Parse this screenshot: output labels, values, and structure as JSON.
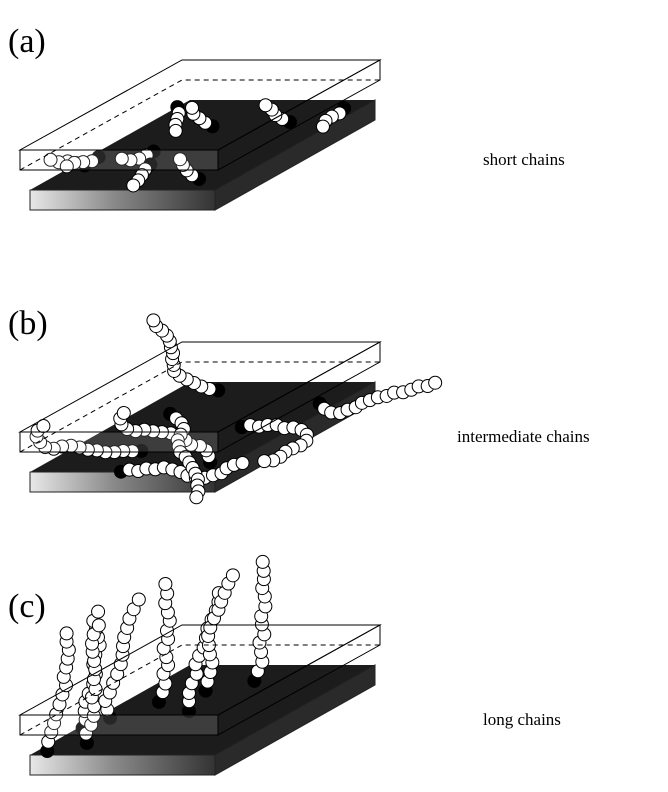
{
  "panels": [
    {
      "label": "(a)",
      "caption": "short chains"
    },
    {
      "label": "(b)",
      "caption": "intermediate chains"
    },
    {
      "label": "(c)",
      "caption": "long chains"
    }
  ]
}
